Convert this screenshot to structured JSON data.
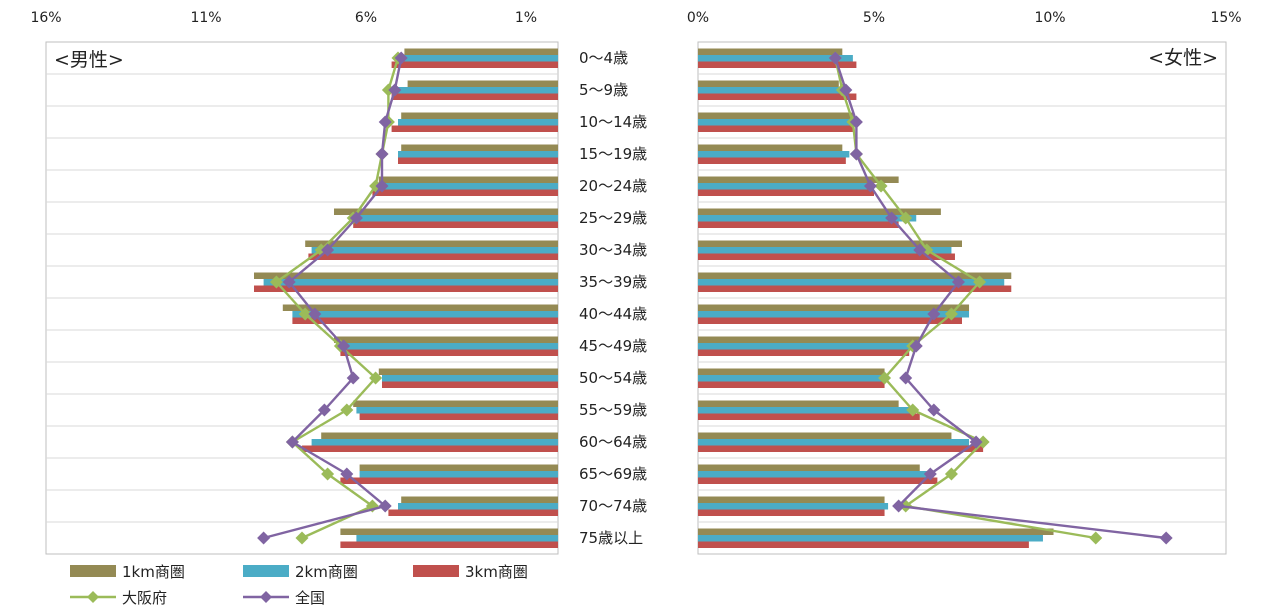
{
  "chart_data": {
    "type": "bar",
    "title": "",
    "categories": [
      "0〜4歳",
      "5〜9歳",
      "10〜14歳",
      "15〜19歳",
      "20〜24歳",
      "25〜29歳",
      "30〜34歳",
      "35〜39歳",
      "40〜44歳",
      "45〜49歳",
      "50〜54歳",
      "55〜59歳",
      "60〜64歳",
      "65〜69歳",
      "70〜74歳",
      "75歳以上"
    ],
    "colors": {
      "1km商圏": "#948a54",
      "2km商圏": "#4bacc6",
      "3km商圏": "#c0504d",
      "大阪府": "#9bbb59",
      "全国": "#8064a2"
    },
    "male": {
      "label": "<男性>",
      "axis_ticks": [
        "16%",
        "11%",
        "6%",
        "1%"
      ],
      "axis_tick_values": [
        16,
        11,
        6,
        1
      ],
      "xlim": [
        0,
        16
      ],
      "orientation": "reversed",
      "series": [
        {
          "name": "1km商圏",
          "kind": "bar",
          "values": [
            4.8,
            4.7,
            4.9,
            4.9,
            5.6,
            7.0,
            7.9,
            9.5,
            8.6,
            7.0,
            5.6,
            6.4,
            7.4,
            6.2,
            4.9,
            6.8
          ]
        },
        {
          "name": "2km商圏",
          "kind": "bar",
          "values": [
            5.0,
            5.1,
            5.0,
            5.0,
            5.7,
            6.5,
            7.7,
            9.2,
            8.3,
            6.7,
            5.5,
            6.3,
            7.7,
            6.2,
            5.0,
            6.3
          ]
        },
        {
          "name": "3km商圏",
          "kind": "bar",
          "values": [
            5.2,
            5.2,
            5.2,
            5.0,
            5.8,
            6.4,
            7.8,
            9.5,
            8.3,
            6.8,
            5.5,
            6.2,
            8.0,
            6.8,
            5.3,
            6.8
          ]
        },
        {
          "name": "大阪府",
          "kind": "line",
          "values": [
            5.0,
            5.3,
            5.3,
            5.5,
            5.7,
            6.4,
            7.4,
            8.8,
            7.9,
            6.8,
            5.7,
            6.6,
            8.3,
            7.2,
            5.8,
            8.0
          ]
        },
        {
          "name": "全国",
          "kind": "line",
          "values": [
            4.9,
            5.1,
            5.4,
            5.5,
            5.5,
            6.3,
            7.2,
            8.4,
            7.6,
            6.7,
            6.4,
            7.3,
            8.3,
            6.6,
            5.4,
            9.2
          ]
        }
      ]
    },
    "female": {
      "label": "<女性>",
      "axis_ticks": [
        "0%",
        "5%",
        "10%",
        "15%"
      ],
      "axis_tick_values": [
        0,
        5,
        10,
        15
      ],
      "xlim": [
        0,
        15
      ],
      "orientation": "normal",
      "series": [
        {
          "name": "1km商圏",
          "kind": "bar",
          "values": [
            4.1,
            4.0,
            4.4,
            4.1,
            5.7,
            6.9,
            7.5,
            8.9,
            7.7,
            6.3,
            5.3,
            5.7,
            7.2,
            6.3,
            5.3,
            10.1
          ]
        },
        {
          "name": "2km商圏",
          "kind": "bar",
          "values": [
            4.4,
            4.3,
            4.5,
            4.3,
            5.0,
            6.2,
            7.2,
            8.7,
            7.7,
            6.0,
            5.3,
            6.1,
            7.7,
            6.5,
            5.4,
            9.8
          ]
        },
        {
          "name": "3km商圏",
          "kind": "bar",
          "values": [
            4.5,
            4.5,
            4.4,
            4.2,
            5.0,
            5.7,
            7.3,
            8.9,
            7.5,
            6.0,
            5.3,
            6.3,
            8.1,
            6.8,
            5.3,
            9.4
          ]
        },
        {
          "name": "大阪府",
          "kind": "line",
          "values": [
            3.9,
            4.1,
            4.4,
            4.5,
            5.2,
            5.9,
            6.5,
            8.0,
            7.2,
            6.1,
            5.3,
            6.1,
            8.1,
            7.2,
            5.9,
            11.3
          ]
        },
        {
          "name": "全国",
          "kind": "line",
          "values": [
            3.9,
            4.2,
            4.5,
            4.5,
            4.9,
            5.5,
            6.3,
            7.4,
            6.7,
            6.2,
            5.9,
            6.7,
            7.9,
            6.6,
            5.7,
            13.3
          ]
        }
      ]
    },
    "legend": {
      "placement": "bottom-left",
      "items": [
        {
          "name": "1km商圏",
          "kind": "bar"
        },
        {
          "name": "2km商圏",
          "kind": "bar"
        },
        {
          "name": "3km商圏",
          "kind": "bar"
        },
        {
          "name": "大阪府",
          "kind": "line"
        },
        {
          "name": "全国",
          "kind": "line"
        }
      ]
    },
    "grid": true
  }
}
